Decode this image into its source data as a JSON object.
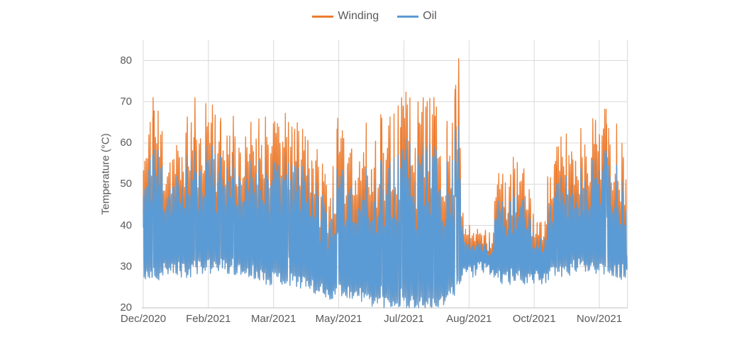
{
  "colors": {
    "winding": "#ED7D31",
    "oil": "#5B9BD5",
    "gridline": "#D9D9D9",
    "axis_line": "#BFBFBF",
    "text": "#595959",
    "background": "#FFFFFF"
  },
  "legend": {
    "items": [
      {
        "label": "Winding",
        "color": "#ED7D31"
      },
      {
        "label": "Oil",
        "color": "#5B9BD5"
      }
    ]
  },
  "chart_data": {
    "type": "line",
    "title": "",
    "xlabel": "",
    "ylabel": "Temperature (°C)",
    "ylim": [
      20,
      85
    ],
    "yticks": [
      20,
      30,
      40,
      50,
      60,
      70,
      80
    ],
    "xtick_labels": [
      "Dec/2020",
      "Feb/2021",
      "Mar/2021",
      "May/2021",
      "Jul/2021",
      "Aug/2021",
      "Oct/2021",
      "Nov/2021"
    ],
    "grid": "horizontal and vertical light-gray gridlines at every labeled tick",
    "legend_position": "top-center",
    "series": [
      {
        "name": "Winding",
        "color": "#ED7D31"
      },
      {
        "name": "Oil",
        "color": "#5B9BD5"
      }
    ],
    "envelope_keypoints": [
      {
        "t": 0.0,
        "oil_min": 28.0,
        "oil_max": 52,
        "winding_above_oil": 8
      },
      {
        "t": 0.02,
        "oil_min": 28.0,
        "oil_max": 57,
        "winding_above_oil": 9
      },
      {
        "t": 0.06,
        "oil_min": 29.0,
        "oil_max": 54,
        "winding_above_oil": 8
      },
      {
        "t": 0.105,
        "oil_min": 29.0,
        "oil_max": 56,
        "winding_above_oil": 9
      },
      {
        "t": 0.135,
        "oil_min": 30.0,
        "oil_max": 56,
        "winding_above_oil": 9
      },
      {
        "t": 0.185,
        "oil_min": 29.0,
        "oil_max": 57,
        "winding_above_oil": 8
      },
      {
        "t": 0.235,
        "oil_min": 28.0,
        "oil_max": 54,
        "winding_above_oil": 9
      },
      {
        "t": 0.27,
        "oil_min": 27.0,
        "oil_max": 53,
        "winding_above_oil": 9
      },
      {
        "t": 0.33,
        "oil_min": 26.0,
        "oil_max": 54,
        "winding_above_oil": 9
      },
      {
        "t": 0.365,
        "oil_min": 24.0,
        "oil_max": 47,
        "winding_above_oil": 7
      },
      {
        "t": 0.385,
        "oil_min": 23.0,
        "oil_max": 42,
        "winding_above_oil": 6
      },
      {
        "t": 0.402,
        "oil_min": 24.0,
        "oil_max": 52,
        "winding_above_oil": 9
      },
      {
        "t": 0.435,
        "oil_min": 23.0,
        "oil_max": 49,
        "winding_above_oil": 9
      },
      {
        "t": 0.47,
        "oil_min": 22.0,
        "oil_max": 51,
        "winding_above_oil": 10
      },
      {
        "t": 0.505,
        "oil_min": 21.0,
        "oil_max": 53,
        "winding_above_oil": 10
      },
      {
        "t": 0.54,
        "oil_min": 21.0,
        "oil_max": 56,
        "winding_above_oil": 10
      },
      {
        "t": 0.58,
        "oil_min": 20.5,
        "oil_max": 57,
        "winding_above_oil": 10
      },
      {
        "t": 0.62,
        "oil_min": 21.0,
        "oil_max": 55,
        "winding_above_oil": 10
      },
      {
        "t": 0.643,
        "oil_min": 24.0,
        "oil_max": 59,
        "winding_above_oil": 10
      },
      {
        "t": 0.652,
        "oil_min": 26.0,
        "oil_max": 62,
        "winding_above_oil": 11
      },
      {
        "t": 0.658,
        "oil_min": 28.0,
        "oil_max": 48,
        "winding_above_oil": 5
      },
      {
        "t": 0.666,
        "oil_min": 29.0,
        "oil_max": 36,
        "winding_above_oil": 2.5
      },
      {
        "t": 0.72,
        "oil_min": 29.0,
        "oil_max": 36,
        "winding_above_oil": 2.5
      },
      {
        "t": 0.735,
        "oil_min": 27.0,
        "oil_max": 44,
        "winding_above_oil": 6
      },
      {
        "t": 0.775,
        "oil_min": 27.0,
        "oil_max": 47,
        "winding_above_oil": 7
      },
      {
        "t": 0.8,
        "oil_min": 27.0,
        "oil_max": 45,
        "winding_above_oil": 6
      },
      {
        "t": 0.81,
        "oil_min": 27.0,
        "oil_max": 38,
        "winding_above_oil": 4
      },
      {
        "t": 0.825,
        "oil_min": 27.0,
        "oil_max": 38,
        "winding_above_oil": 4
      },
      {
        "t": 0.838,
        "oil_min": 28.0,
        "oil_max": 48,
        "winding_above_oil": 8
      },
      {
        "t": 0.872,
        "oil_min": 29.0,
        "oil_max": 50,
        "winding_above_oil": 9
      },
      {
        "t": 0.905,
        "oil_min": 30.0,
        "oil_max": 52,
        "winding_above_oil": 9
      },
      {
        "t": 0.935,
        "oil_min": 30.0,
        "oil_max": 54,
        "winding_above_oil": 9
      },
      {
        "t": 0.965,
        "oil_min": 29.0,
        "oil_max": 55,
        "winding_above_oil": 9
      },
      {
        "t": 1.0,
        "oil_min": 28.0,
        "oil_max": 51,
        "winding_above_oil": 10
      }
    ],
    "peak_events": [
      {
        "t": 0.0205,
        "winding": 71.0,
        "oil": 55
      },
      {
        "t": 0.107,
        "winding": 71.0,
        "oil": 58
      },
      {
        "t": 0.16,
        "winding": 66.0,
        "oil": 57
      },
      {
        "t": 0.186,
        "winding": 66.5,
        "oil": 57
      },
      {
        "t": 0.3,
        "winding": 65.0,
        "oil": 55
      },
      {
        "t": 0.402,
        "winding": 66.0,
        "oil": 52
      },
      {
        "t": 0.493,
        "winding": 66.0,
        "oil": 55
      },
      {
        "t": 0.527,
        "winding": 69.0,
        "oil": 57
      },
      {
        "t": 0.534,
        "winding": 71.0,
        "oil": 58
      },
      {
        "t": 0.568,
        "winding": 70.0,
        "oil": 57
      },
      {
        "t": 0.601,
        "winding": 71.0,
        "oil": 59
      },
      {
        "t": 0.646,
        "winding": 74.0,
        "oil": 61
      },
      {
        "t": 0.652,
        "winding": 80.5,
        "oil": 64
      },
      {
        "t": 0.855,
        "winding": 59.0,
        "oil": 50
      },
      {
        "t": 0.958,
        "winding": 64.5,
        "oil": 57
      }
    ],
    "n_points_per_series": 2800,
    "days_spanned": 365,
    "seed": 11
  }
}
